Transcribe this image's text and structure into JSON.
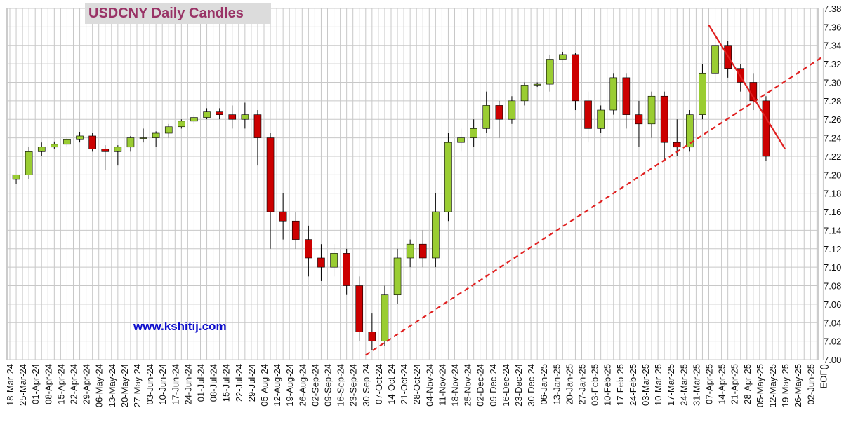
{
  "chart_data": {
    "type": "candlestick",
    "title": "USDCNY Daily Candles",
    "annotation": "www.kshitij.com",
    "categories": [
      "18-Mar-24",
      "25-Mar-24",
      "01-Apr-24",
      "08-Apr-24",
      "15-Apr-24",
      "22-Apr-24",
      "29-Apr-24",
      "06-May-24",
      "13-May-24",
      "20-May-24",
      "27-May-24",
      "03-Jun-24",
      "10-Jun-24",
      "17-Jun-24",
      "24-Jun-24",
      "01-Jul-24",
      "08-Jul-24",
      "15-Jul-24",
      "22-Jul-24",
      "29-Jul-24",
      "05-Aug-24",
      "12-Aug-24",
      "19-Aug-24",
      "26-Aug-24",
      "02-Sep-24",
      "09-Sep-24",
      "16-Sep-24",
      "23-Sep-24",
      "30-Sep-24",
      "07-Oct-24",
      "14-Oct-24",
      "21-Oct-24",
      "28-Oct-24",
      "04-Nov-24",
      "11-Nov-24",
      "18-Nov-24",
      "25-Nov-24",
      "02-Dec-24",
      "09-Dec-24",
      "16-Dec-24",
      "23-Dec-24",
      "30-Dec-24",
      "06-Jan-25",
      "13-Jan-25",
      "20-Jan-25",
      "27-Jan-25",
      "03-Feb-25",
      "10-Feb-25",
      "17-Feb-25",
      "24-Feb-25",
      "03-Mar-25",
      "10-Mar-25",
      "17-Mar-25",
      "24-Mar-25",
      "31-Mar-25",
      "07-Apr-25",
      "14-Apr-25",
      "21-Apr-25",
      "28-Apr-25",
      "05-May-25",
      "12-May-25",
      "19-May-25",
      "26-May-25",
      "02-Jun-25",
      "EOF()"
    ],
    "open": [
      7.195,
      7.2,
      7.225,
      7.23,
      7.233,
      7.238,
      7.242,
      7.228,
      7.225,
      7.23,
      7.24,
      7.24,
      7.245,
      7.252,
      7.258,
      7.262,
      7.268,
      7.265,
      7.26,
      7.265,
      7.24,
      7.16,
      7.15,
      7.13,
      7.11,
      7.1,
      7.115,
      7.08,
      7.03,
      7.02,
      7.07,
      7.11,
      7.125,
      7.11,
      7.16,
      7.235,
      7.24,
      7.25,
      7.275,
      7.26,
      7.28,
      7.297,
      7.298,
      7.325,
      7.33,
      7.28,
      7.25,
      7.27,
      7.305,
      7.265,
      7.255,
      7.285,
      7.235,
      7.23,
      7.265,
      7.31,
      7.34,
      7.315,
      7.3,
      7.28,
      null,
      null,
      null,
      null,
      null
    ],
    "high": [
      7.2,
      7.23,
      7.235,
      7.236,
      7.24,
      7.246,
      7.245,
      7.232,
      7.232,
      7.242,
      7.25,
      7.247,
      7.255,
      7.26,
      7.265,
      7.272,
      7.272,
      7.275,
      7.278,
      7.27,
      7.245,
      7.18,
      7.16,
      7.145,
      7.125,
      7.125,
      7.12,
      7.09,
      7.05,
      7.08,
      7.12,
      7.13,
      7.14,
      7.18,
      7.245,
      7.25,
      7.26,
      7.29,
      7.28,
      7.285,
      7.3,
      7.3,
      7.33,
      7.333,
      7.332,
      7.29,
      7.275,
      7.31,
      7.31,
      7.28,
      7.29,
      7.29,
      7.26,
      7.27,
      7.32,
      7.355,
      7.345,
      7.32,
      7.31,
      7.285,
      null,
      null,
      null,
      null,
      null
    ],
    "low": [
      7.19,
      7.195,
      7.22,
      7.228,
      7.23,
      7.235,
      7.225,
      7.205,
      7.21,
      7.225,
      7.235,
      7.23,
      7.24,
      7.25,
      7.255,
      7.26,
      7.26,
      7.25,
      7.25,
      7.21,
      7.12,
      7.13,
      7.12,
      7.09,
      7.085,
      7.09,
      7.07,
      7.02,
      7.01,
      7.015,
      7.06,
      7.1,
      7.1,
      7.1,
      7.15,
      7.225,
      7.23,
      7.245,
      7.24,
      7.255,
      7.275,
      7.295,
      7.29,
      7.325,
      7.27,
      7.235,
      7.245,
      7.265,
      7.25,
      7.23,
      7.24,
      7.215,
      7.22,
      7.225,
      7.26,
      7.3,
      7.305,
      7.29,
      7.27,
      7.215,
      null,
      null,
      null,
      null,
      null
    ],
    "close": [
      7.2,
      7.225,
      7.23,
      7.233,
      7.238,
      7.242,
      7.228,
      7.225,
      7.23,
      7.24,
      7.24,
      7.245,
      7.252,
      7.258,
      7.262,
      7.268,
      7.265,
      7.26,
      7.265,
      7.24,
      7.16,
      7.15,
      7.13,
      7.11,
      7.1,
      7.115,
      7.08,
      7.03,
      7.02,
      7.07,
      7.11,
      7.125,
      7.11,
      7.16,
      7.235,
      7.24,
      7.25,
      7.275,
      7.26,
      7.28,
      7.297,
      7.298,
      7.325,
      7.33,
      7.28,
      7.25,
      7.27,
      7.305,
      7.265,
      7.255,
      7.285,
      7.235,
      7.23,
      7.265,
      7.31,
      7.34,
      7.315,
      7.3,
      7.28,
      7.22,
      null,
      null,
      null,
      null,
      null
    ],
    "up_color": "#9acd32",
    "down_color": "#cc0000",
    "lines": [
      {
        "style": "dashed",
        "color": "#e02020",
        "x": [
          "30-Sep-24",
          "EOF()"
        ],
        "y": [
          7.005,
          7.328
        ]
      },
      {
        "style": "solid",
        "color": "#e02020",
        "x": [
          "07-Apr-25",
          "19-May-25"
        ],
        "y": [
          7.362,
          7.228
        ]
      }
    ],
    "ylim": [
      7.0,
      7.38
    ],
    "yticks": [
      {
        "value": 7.0,
        "label": "7.00"
      },
      7.02,
      7.04,
      7.06,
      7.08,
      {
        "value": 7.1,
        "label": "7.10"
      },
      7.12,
      7.14,
      7.16,
      7.18,
      {
        "value": 7.2,
        "label": "7.20"
      },
      7.22,
      7.24,
      7.26,
      7.28,
      {
        "value": 7.3,
        "label": "7.30"
      },
      7.32,
      7.34,
      7.36,
      7.38
    ],
    "grid": true
  }
}
